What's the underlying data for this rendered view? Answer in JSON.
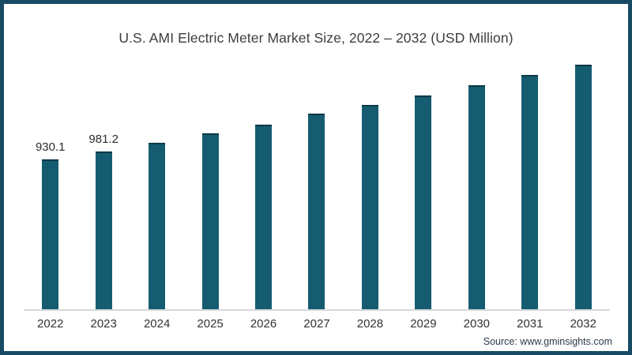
{
  "title": "U.S. AMI Electric Meter Market Size, 2022 – 2032 (USD Million)",
  "source": "Source: www.gminsights.com",
  "colors": {
    "bar": "#155c70",
    "bar_top_edge": "#0d3845",
    "frame_border": "#174a63",
    "axis_line": "#d8d8d8",
    "title_text": "#3d3d3d",
    "label_text": "#333333"
  },
  "chart_data": {
    "type": "bar",
    "title": "U.S. AMI Electric Meter Market Size, 2022 – 2032 (USD Million)",
    "categories": [
      "2022",
      "2023",
      "2024",
      "2025",
      "2026",
      "2027",
      "2028",
      "2029",
      "2030",
      "2031",
      "2032"
    ],
    "values": [
      930.1,
      981.2,
      1035,
      1095,
      1150,
      1215,
      1270,
      1330,
      1395,
      1455,
      1520
    ],
    "data_labels": [
      "930.1",
      "981.2",
      "",
      "",
      "",
      "",
      "",
      "",
      "",
      "",
      ""
    ],
    "xlabel": "",
    "ylabel": "",
    "grid": false,
    "legend": false,
    "bar_color": "#155c70"
  }
}
